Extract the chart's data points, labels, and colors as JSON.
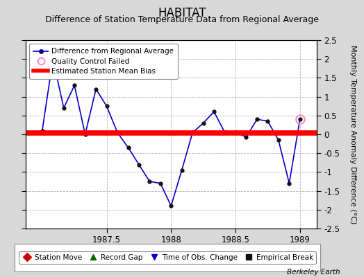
{
  "title": "HABITAT",
  "subtitle": "Difference of Station Temperature Data from Regional Average",
  "ylabel": "Monthly Temperature Anomaly Difference (°C)",
  "xlabel_ticks": [
    1987.5,
    1988.0,
    1988.5,
    1989.0
  ],
  "ylim": [
    -2.5,
    2.5
  ],
  "xlim": [
    1986.87,
    1989.13
  ],
  "background_color": "#d8d8d8",
  "plot_bg_color": "#ffffff",
  "grid_color": "#aaaaaa",
  "line_color": "#0000cc",
  "bias_line_color": "#ff0000",
  "bias_line_start": 1986.87,
  "bias_line_end": 1989.13,
  "bias_line_y": 0.03,
  "x_data": [
    1987.0,
    1987.083,
    1987.167,
    1987.25,
    1987.333,
    1987.417,
    1987.5,
    1987.583,
    1987.667,
    1987.75,
    1987.833,
    1987.917,
    1988.0,
    1988.083,
    1988.167,
    1988.25,
    1988.333,
    1988.417,
    1988.5,
    1988.583,
    1988.667,
    1988.75,
    1988.833,
    1988.917,
    1989.0
  ],
  "y_data": [
    0.1,
    2.0,
    0.7,
    1.3,
    0.0,
    1.2,
    0.75,
    0.05,
    -0.35,
    -0.8,
    -1.25,
    -1.3,
    -1.9,
    -0.95,
    0.05,
    0.3,
    0.6,
    0.05,
    0.05,
    -0.07,
    0.4,
    0.35,
    -0.15,
    -1.3,
    0.4
  ],
  "qc_failed_x": [
    1989.0
  ],
  "qc_failed_y": [
    0.4
  ],
  "yticks": [
    -2.5,
    -2,
    -1.5,
    -1,
    -0.5,
    0,
    0.5,
    1,
    1.5,
    2,
    2.5
  ],
  "bottom_legend": [
    {
      "label": "Station Move",
      "color": "#cc0000",
      "marker": "D",
      "mfc": "#cc0000"
    },
    {
      "label": "Record Gap",
      "color": "#006600",
      "marker": "^",
      "mfc": "#006600"
    },
    {
      "label": "Time of Obs. Change",
      "color": "#0000cc",
      "marker": "v",
      "mfc": "#0000cc"
    },
    {
      "label": "Empirical Break",
      "color": "#111111",
      "marker": "s",
      "mfc": "#111111"
    }
  ],
  "watermark": "Berkeley Earth",
  "title_fontsize": 12,
  "subtitle_fontsize": 9,
  "tick_fontsize": 8.5,
  "ylabel_fontsize": 8
}
